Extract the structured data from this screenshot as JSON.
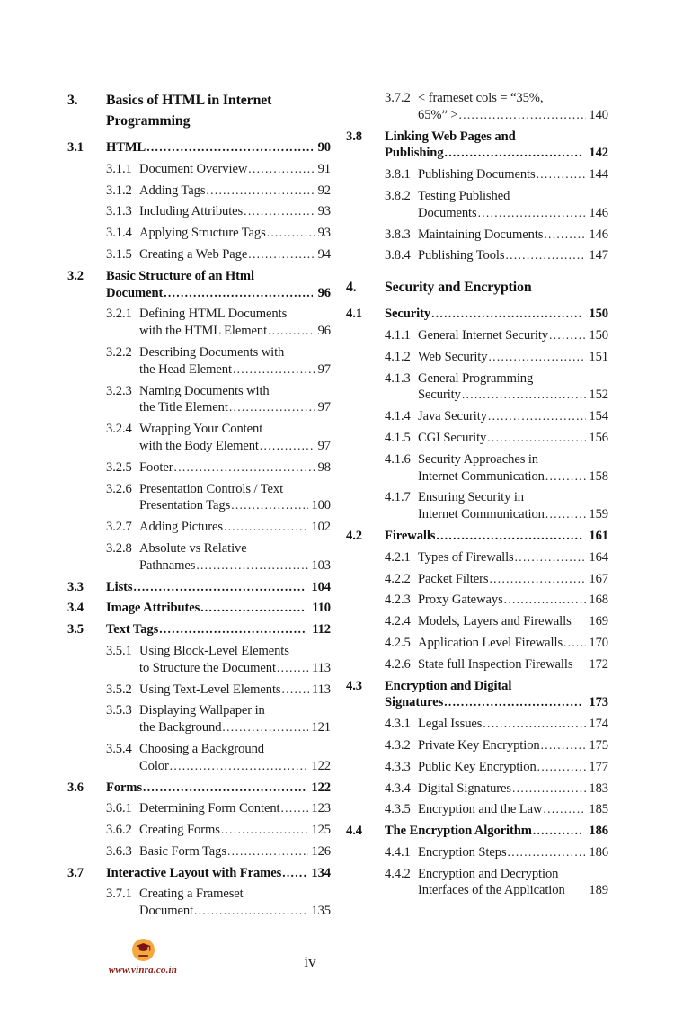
{
  "document": {
    "page_label": "iv"
  },
  "footer": {
    "logo_url": "www.vinra.co.in",
    "logo_circle_color": "#F3A93F",
    "logo_icon_color": "#7A1113",
    "logo_text_color": "#8E1A12"
  },
  "toc": {
    "columns": [
      {
        "name": "left",
        "entries": [
          {
            "num": "3.",
            "style": "chapter",
            "lines": [
              "Basics of HTML in Internet",
              "Programming"
            ],
            "page": null,
            "leader": "none"
          },
          {
            "num": "3.1",
            "style": "section",
            "lines": [
              "HTML"
            ],
            "page": "90",
            "leader": "dots"
          },
          {
            "num": "3.1.1",
            "style": "sub",
            "lines": [
              "Document Overview"
            ],
            "page": "91",
            "leader": "dots"
          },
          {
            "num": "3.1.2",
            "style": "sub",
            "lines": [
              "Adding Tags"
            ],
            "page": "92",
            "leader": "dots"
          },
          {
            "num": "3.1.3",
            "style": "sub",
            "lines": [
              "Including Attributes"
            ],
            "page": "93",
            "leader": "dots"
          },
          {
            "num": "3.1.4",
            "style": "sub",
            "lines": [
              "Applying Structure Tags"
            ],
            "page": "93",
            "leader": "dots"
          },
          {
            "num": "3.1.5",
            "style": "sub",
            "lines": [
              "Creating a Web Page"
            ],
            "page": "94",
            "leader": "dots"
          },
          {
            "num": "3.2",
            "style": "section",
            "lines": [
              "Basic Structure of an Html",
              "Document"
            ],
            "page": "96",
            "leader": "dots"
          },
          {
            "num": "3.2.1",
            "style": "sub",
            "lines": [
              "Defining HTML Documents",
              "with the HTML Element"
            ],
            "page": "96",
            "leader": "dots"
          },
          {
            "num": "3.2.2",
            "style": "sub",
            "lines": [
              "Describing Documents with",
              "the Head Element"
            ],
            "page": "97",
            "leader": "dots"
          },
          {
            "num": "3.2.3",
            "style": "sub",
            "lines": [
              "Naming Documents with",
              "the Title Element"
            ],
            "page": "97",
            "leader": "dots"
          },
          {
            "num": "3.2.4",
            "style": "sub",
            "lines": [
              "Wrapping Your Content",
              "with the Body Element"
            ],
            "page": "97",
            "leader": "dots"
          },
          {
            "num": "3.2.5",
            "style": "sub",
            "lines": [
              "Footer"
            ],
            "page": "98",
            "leader": "dots"
          },
          {
            "num": "3.2.6",
            "style": "sub",
            "lines": [
              "Presentation Controls / Text",
              "Presentation Tags"
            ],
            "page": "100",
            "leader": "dots"
          },
          {
            "num": "3.2.7",
            "style": "sub",
            "lines": [
              "Adding Pictures"
            ],
            "page": "102",
            "leader": "dots"
          },
          {
            "num": "3.2.8",
            "style": "sub",
            "lines": [
              "Absolute vs Relative",
              "Pathnames"
            ],
            "page": "103",
            "leader": "dots"
          },
          {
            "num": "3.3",
            "style": "section",
            "lines": [
              "Lists"
            ],
            "page": "104",
            "leader": "dots"
          },
          {
            "num": "3.4",
            "style": "section",
            "lines": [
              "Image Attributes"
            ],
            "page": "110",
            "leader": "dots"
          },
          {
            "num": "3.5",
            "style": "section",
            "lines": [
              "Text Tags"
            ],
            "page": "112",
            "leader": "dots"
          },
          {
            "num": "3.5.1",
            "style": "sub",
            "lines": [
              "Using Block-Level Elements",
              "to Structure the Document"
            ],
            "page": "113",
            "leader": "dots"
          },
          {
            "num": "3.5.2",
            "style": "sub",
            "lines": [
              "Using Text-Level Elements"
            ],
            "page": "113",
            "leader": "dots"
          },
          {
            "num": "3.5.3",
            "style": "sub",
            "lines": [
              "Displaying Wallpaper in",
              "the Background"
            ],
            "page": "121",
            "leader": "dots"
          },
          {
            "num": "3.5.4",
            "style": "sub",
            "lines": [
              "Choosing a Background",
              "Color"
            ],
            "page": "122",
            "leader": "dots"
          },
          {
            "num": "3.6",
            "style": "section",
            "lines": [
              "Forms"
            ],
            "page": "122",
            "leader": "dots"
          },
          {
            "num": "3.6.1",
            "style": "sub",
            "lines": [
              "Determining Form Content"
            ],
            "page": "123",
            "leader": "dots"
          },
          {
            "num": "3.6.2",
            "style": "sub",
            "lines": [
              "Creating Forms"
            ],
            "page": "125",
            "leader": "dots"
          },
          {
            "num": "3.6.3",
            "style": "sub",
            "lines": [
              "Basic Form Tags"
            ],
            "page": "126",
            "leader": "dots"
          },
          {
            "num": "3.7",
            "style": "section",
            "lines": [
              "Interactive Layout with Frames"
            ],
            "page": "134",
            "leader": "dots"
          },
          {
            "num": "3.7.1",
            "style": "sub",
            "lines": [
              "Creating a Frameset",
              "Document"
            ],
            "page": "135",
            "leader": "dots"
          }
        ]
      },
      {
        "name": "right",
        "entries": [
          {
            "num": "3.7.2",
            "style": "sub",
            "lines": [
              "< frameset cols = “35%,",
              "65%” >"
            ],
            "page": "140",
            "leader": "dots"
          },
          {
            "num": "3.8",
            "style": "section",
            "lines": [
              "Linking Web Pages and",
              "Publishing"
            ],
            "page": "142",
            "leader": "dots"
          },
          {
            "num": "3.8.1",
            "style": "sub",
            "lines": [
              "Publishing Documents"
            ],
            "page": "144",
            "leader": "dots"
          },
          {
            "num": "3.8.2",
            "style": "sub",
            "lines": [
              "Testing Published",
              "Documents"
            ],
            "page": "146",
            "leader": "dots"
          },
          {
            "num": "3.8.3",
            "style": "sub",
            "lines": [
              "Maintaining Documents"
            ],
            "page": "146",
            "leader": "dots"
          },
          {
            "num": "3.8.4",
            "style": "sub",
            "lines": [
              "Publishing Tools"
            ],
            "page": "147",
            "leader": "dots"
          },
          {
            "num": "4.",
            "style": "chapter",
            "lines": [
              "Security and Encryption"
            ],
            "page": null,
            "leader": "none"
          },
          {
            "num": "4.1",
            "style": "section",
            "lines": [
              "Security"
            ],
            "page": "150",
            "leader": "dots"
          },
          {
            "num": "4.1.1",
            "style": "sub",
            "lines": [
              "General Internet Security"
            ],
            "page": "150",
            "leader": "dots"
          },
          {
            "num": "4.1.2",
            "style": "sub",
            "lines": [
              "Web Security"
            ],
            "page": "151",
            "leader": "dots"
          },
          {
            "num": "4.1.3",
            "style": "sub",
            "lines": [
              "General Programming",
              "Security"
            ],
            "page": "152",
            "leader": "dots"
          },
          {
            "num": "4.1.4",
            "style": "sub",
            "lines": [
              "Java Security"
            ],
            "page": "154",
            "leader": "dots"
          },
          {
            "num": "4.1.5",
            "style": "sub",
            "lines": [
              "CGI Security"
            ],
            "page": "156",
            "leader": "dots"
          },
          {
            "num": "4.1.6",
            "style": "sub",
            "lines": [
              "Security Approaches in",
              "Internet Communication"
            ],
            "page": "158",
            "leader": "dots"
          },
          {
            "num": "4.1.7",
            "style": "sub",
            "lines": [
              "Ensuring Security in",
              "Internet Communication"
            ],
            "page": "159",
            "leader": "dots"
          },
          {
            "num": "4.2",
            "style": "section",
            "lines": [
              "Firewalls"
            ],
            "page": "161",
            "leader": "dots"
          },
          {
            "num": "4.2.1",
            "style": "sub",
            "lines": [
              "Types of Firewalls"
            ],
            "page": "164",
            "leader": "dots"
          },
          {
            "num": "4.2.2",
            "style": "sub",
            "lines": [
              "Packet Filters"
            ],
            "page": "167",
            "leader": "dots"
          },
          {
            "num": "4.2.3",
            "style": "sub",
            "lines": [
              "Proxy Gateways"
            ],
            "page": "168",
            "leader": "dots"
          },
          {
            "num": "4.2.4",
            "style": "sub",
            "lines": [
              "Models, Layers and Firewalls"
            ],
            "page": "169",
            "leader": "space"
          },
          {
            "num": "4.2.5",
            "style": "sub",
            "lines": [
              "Application Level Firewalls"
            ],
            "page": "170",
            "leader": "dots"
          },
          {
            "num": "4.2.6",
            "style": "sub",
            "lines": [
              "State full Inspection Firewalls"
            ],
            "page": "172",
            "leader": "space"
          },
          {
            "num": "4.3",
            "style": "section",
            "lines": [
              "Encryption and Digital",
              "Signatures"
            ],
            "page": "173",
            "leader": "dots"
          },
          {
            "num": "4.3.1",
            "style": "sub",
            "lines": [
              "Legal Issues"
            ],
            "page": "174",
            "leader": "dots"
          },
          {
            "num": "4.3.2",
            "style": "sub",
            "lines": [
              "Private Key Encryption"
            ],
            "page": "175",
            "leader": "dots"
          },
          {
            "num": "4.3.3",
            "style": "sub",
            "lines": [
              "Public Key Encryption"
            ],
            "page": "177",
            "leader": "dots"
          },
          {
            "num": "4.3.4",
            "style": "sub",
            "lines": [
              "Digital Signatures"
            ],
            "page": "183",
            "leader": "dots"
          },
          {
            "num": "4.3.5",
            "style": "sub",
            "lines": [
              "Encryption and the Law"
            ],
            "page": "185",
            "leader": "dots"
          },
          {
            "num": "4.4",
            "style": "section",
            "lines": [
              "The Encryption Algorithm"
            ],
            "page": "186",
            "leader": "dots"
          },
          {
            "num": "4.4.1",
            "style": "sub",
            "lines": [
              "Encryption Steps"
            ],
            "page": "186",
            "leader": "dots"
          },
          {
            "num": "4.4.2",
            "style": "sub",
            "lines": [
              "Encryption and Decryption",
              "Interfaces of the Application"
            ],
            "page": "189",
            "leader": "space"
          }
        ]
      }
    ]
  }
}
